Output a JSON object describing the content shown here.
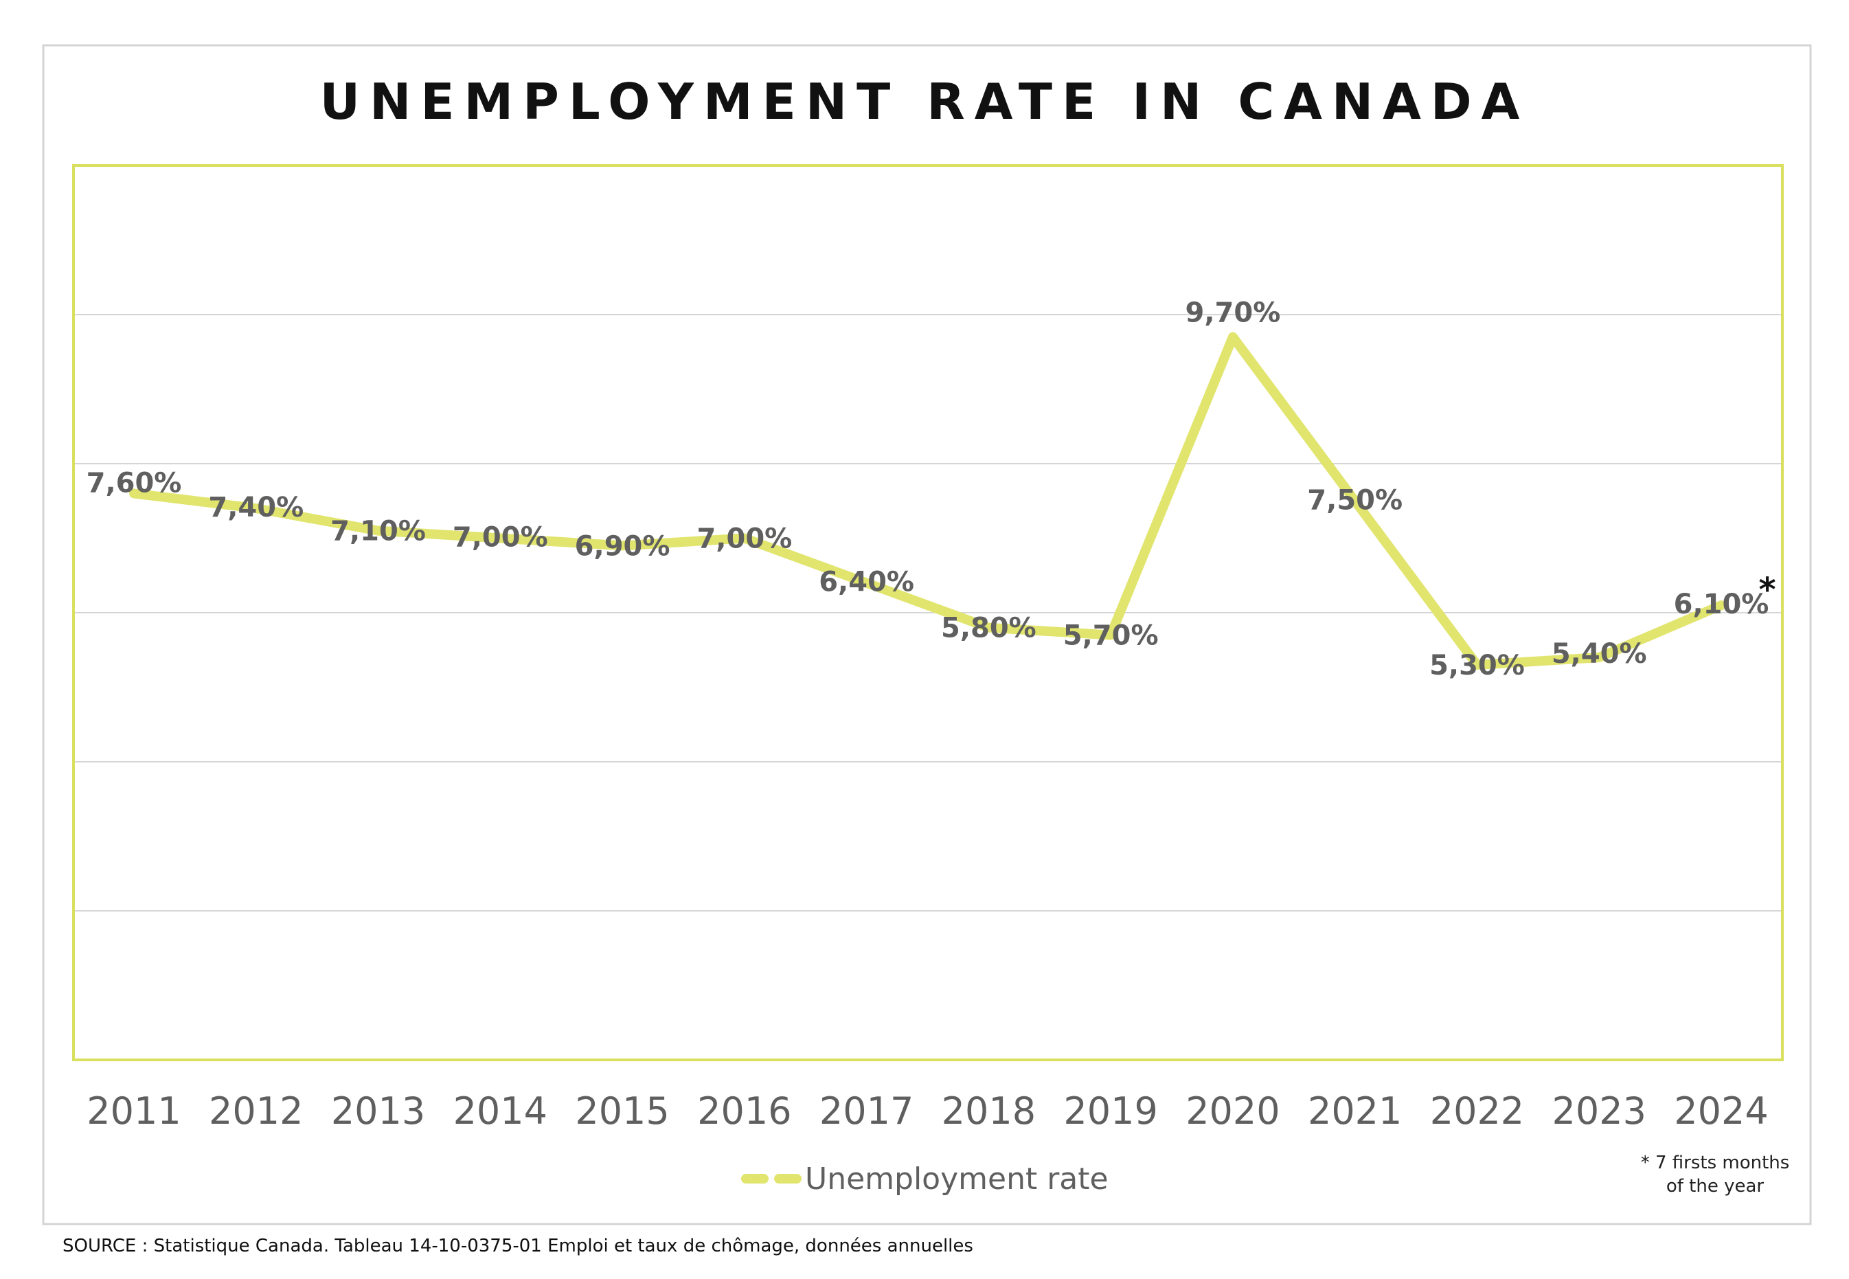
{
  "chart_data": {
    "type": "line",
    "title": "UNEMPLOYMENT RATE IN CANADA",
    "categories": [
      "2011",
      "2012",
      "2013",
      "2014",
      "2015",
      "2016",
      "2017",
      "2018",
      "2019",
      "2020",
      "2021",
      "2022",
      "2023",
      "2024"
    ],
    "series": [
      {
        "name": "Unemployment rate",
        "values": [
          7.6,
          7.4,
          7.1,
          7.0,
          6.9,
          7.0,
          6.4,
          5.8,
          5.7,
          9.7,
          7.5,
          5.3,
          5.4,
          6.1
        ],
        "labels": [
          "7,60%",
          "7,40%",
          "7,10%",
          "7,00%",
          "6,90%",
          "7,00%",
          "6,40%",
          "5,80%",
          "5,70%",
          "9,70%",
          "7,50%",
          "5,30%",
          "5,40%",
          "6,10%"
        ],
        "color": "#e1e56e"
      }
    ],
    "ylim": [
      0,
      12
    ],
    "grid": true,
    "legend_position": "bottom-center",
    "annotation_marker": "*",
    "annotation_note": [
      "* 7 firsts months",
      "of the year"
    ],
    "frame_color": "#d9df5e",
    "gridline_color": "#d6d6d6"
  },
  "source": "SOURCE : Statistique Canada. Tableau 14-10-0375-01  Emploi et taux de chômage, données annuelles"
}
